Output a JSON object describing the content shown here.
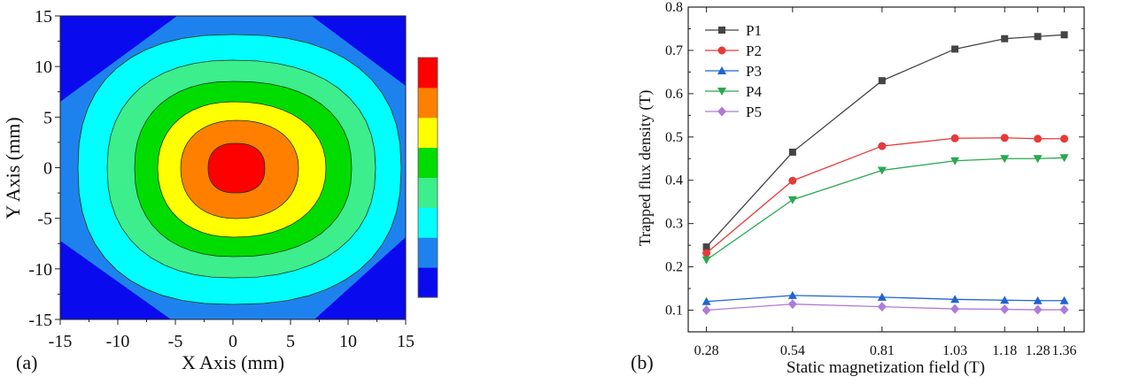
{
  "chart_data": [
    {
      "type": "heatmap",
      "panel_label": "(a)",
      "xlabel": "X Axis (mm)",
      "ylabel": "Y Axis (mm)",
      "xlim": [
        -15,
        15
      ],
      "ylim": [
        -15,
        15
      ],
      "xticks": [
        "-15",
        "-10",
        "-5",
        "0",
        "5",
        "10",
        "15"
      ],
      "yticks": [
        "-15",
        "-10",
        "-5",
        "0",
        "5",
        "10",
        "15"
      ],
      "colorbar_colors": [
        "#0a0aee",
        "#1e82ee",
        "#00ffff",
        "#3cee8c",
        "#00dc00",
        "#ffff00",
        "#ff8000",
        "#ff0000"
      ],
      "contour_levels": 8
    },
    {
      "type": "line",
      "panel_label": "(b)",
      "xlabel": "Static magnetization field (T)",
      "ylabel": "Trapped flux density (T)",
      "x": [
        0.28,
        0.54,
        0.81,
        1.03,
        1.18,
        1.28,
        1.36
      ],
      "xticks": [
        "0.28",
        "0.54",
        "0.81",
        "1.03",
        "1.18",
        "1.28",
        "1.36"
      ],
      "yticks": [
        "0.1",
        "0.2",
        "0.3",
        "0.4",
        "0.5",
        "0.6",
        "0.7",
        "0.8"
      ],
      "xlim": [
        0.225,
        1.42
      ],
      "ylim": [
        0.05,
        0.8
      ],
      "legend_position": "top-left",
      "series": [
        {
          "name": "P1",
          "color": "#444444",
          "marker": "square",
          "values": [
            0.246,
            0.465,
            0.63,
            0.703,
            0.727,
            0.732,
            0.736
          ]
        },
        {
          "name": "P2",
          "color": "#e63a3a",
          "marker": "circle",
          "values": [
            0.232,
            0.399,
            0.479,
            0.497,
            0.498,
            0.496,
            0.496
          ]
        },
        {
          "name": "P3",
          "color": "#1f64d2",
          "marker": "triangle-up",
          "values": [
            0.12,
            0.134,
            0.13,
            0.125,
            0.123,
            0.122,
            0.122
          ]
        },
        {
          "name": "P4",
          "color": "#2aa850",
          "marker": "triangle-down",
          "values": [
            0.216,
            0.355,
            0.423,
            0.445,
            0.45,
            0.45,
            0.452
          ]
        },
        {
          "name": "P5",
          "color": "#b07ad8",
          "marker": "diamond",
          "values": [
            0.1,
            0.114,
            0.108,
            0.103,
            0.102,
            0.101,
            0.101
          ]
        }
      ]
    }
  ]
}
